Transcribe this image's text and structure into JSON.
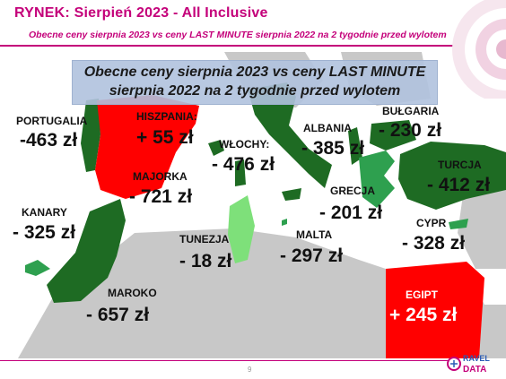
{
  "header": {
    "title": "RYNEK: Sierpień 2023 - All Inclusive",
    "subtitle": "Obecne ceny sierpnia 2023 vs ceny LAST MINUTE sierpnia 2022 na 2 tygodnie przed wylotem"
  },
  "banner": {
    "line1": "Obecne ceny sierpnia 2023 vs ceny LAST MINUTE",
    "line2": "sierpnia 2022 na 2 tygodnie przed wylotem"
  },
  "countries": {
    "portugalia": {
      "label": "PORTUGALIA",
      "value": "-463 zł"
    },
    "hiszpania": {
      "label": "HISZPANIA:",
      "value": "+ 55 zł"
    },
    "majorka": {
      "label": "MAJORKA",
      "value": "- 721 zł"
    },
    "wlochy": {
      "label": "WŁOCHY:",
      "value": "- 476 zł"
    },
    "albania": {
      "label": "ALBANIA",
      "value": "- 385 zł"
    },
    "bulgaria": {
      "label": "BUŁGARIA",
      "value": "- 230 zł"
    },
    "turcja": {
      "label": "TURCJA",
      "value": "- 412 zł"
    },
    "grecja": {
      "label": "GRECJA",
      "value": "- 201 zł"
    },
    "kanary": {
      "label": "KANARY",
      "value": "- 325 zł"
    },
    "cypr": {
      "label": "CYPR",
      "value": "- 328 zł"
    },
    "tunezja": {
      "label": "TUNEZJA",
      "value": "- 18 zł"
    },
    "malta": {
      "label": "MALTA",
      "value": "- 297 zł"
    },
    "maroko": {
      "label": "MAROKO",
      "value": "- 657 zł"
    },
    "egipt": {
      "label": "EGIPT",
      "value": "+ 245 zł"
    }
  },
  "colors": {
    "brand": "#c4007a",
    "decrease_strong": "#1e6b23",
    "decrease_mid": "#2ea04f",
    "decrease_light": "#7ee07a",
    "increase": "#ff0000",
    "land_other": "#c8c8c8",
    "sea": "#ffffff"
  },
  "footer": {
    "page_number": "9",
    "logo_text_top": "RAVEL",
    "logo_text_bottom": "DATA"
  }
}
